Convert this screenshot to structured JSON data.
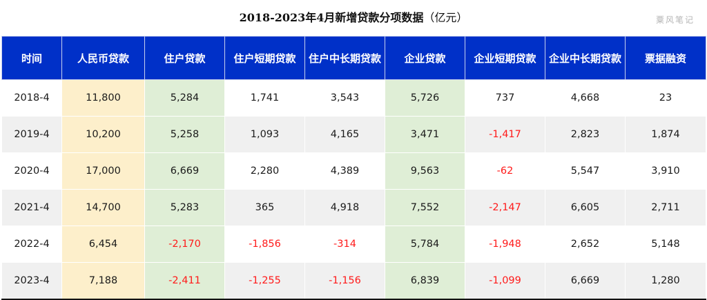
{
  "title": {
    "main": "2018-2023年4月新增贷款分项数据",
    "unit": "（亿元）"
  },
  "watermark": "粟风笔记",
  "colors": {
    "header_bg": "#0030c8",
    "rmb_col_bg": "#fdefcb",
    "highlight_col_bg": "#dfeed6",
    "negative_text": "#ff1a1a",
    "alt_row_bg": "#f0f0f0"
  },
  "table": {
    "headers": [
      "时间",
      "人民币贷款",
      "住户贷款",
      "住户短期贷款",
      "住户中长期贷款",
      "企业贷款",
      "企业短期贷款",
      "企业中长期贷款",
      "票据融资"
    ],
    "rows": [
      [
        "2018-4",
        "11,800",
        "5,284",
        "1,741",
        "3,543",
        "5,726",
        "737",
        "4,668",
        "23"
      ],
      [
        "2019-4",
        "10,200",
        "5,258",
        "1,093",
        "4,165",
        "3,471",
        "-1,417",
        "2,823",
        "1,874"
      ],
      [
        "2020-4",
        "17,000",
        "6,669",
        "2,280",
        "4,389",
        "9,563",
        "-62",
        "5,547",
        "3,910"
      ],
      [
        "2021-4",
        "14,700",
        "5,283",
        "365",
        "4,918",
        "7,552",
        "-2,147",
        "6,605",
        "2,711"
      ],
      [
        "2022-4",
        "6,454",
        "-2,170",
        "-1,856",
        "-314",
        "5,784",
        "-1,948",
        "2,652",
        "5,148"
      ],
      [
        "2023-4",
        "7,188",
        "-2,411",
        "-1,255",
        "-1,156",
        "6,839",
        "-1,099",
        "6,669",
        "1,280"
      ]
    ]
  }
}
